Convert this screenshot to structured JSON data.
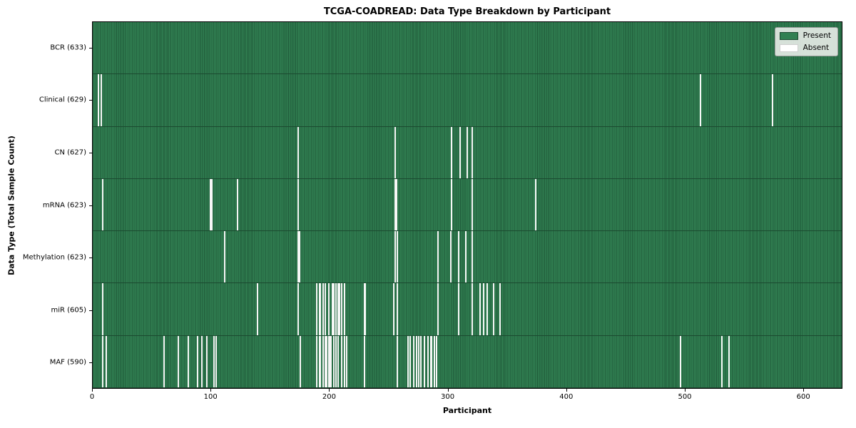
{
  "colors": {
    "present_fill": "#318052",
    "present_edge": "#1e5838",
    "absent": "#f6f7f6",
    "legend_bg": "#e9ece9"
  },
  "legend": {
    "present": "Present",
    "absent": "Absent"
  },
  "chart_data": {
    "type": "heatmap",
    "title": "TCGA-COADREAD: Data Type Breakdown by Participant",
    "xlabel": "Participant",
    "ylabel": "Data Type (Total Sample Count)",
    "x_range": [
      0,
      633
    ],
    "x_ticks": [
      0,
      100,
      200,
      300,
      400,
      500,
      600
    ],
    "legend_position": "upper right",
    "grid": false,
    "rows": [
      {
        "label": "BCR (633)",
        "name": "BCR",
        "total": 633,
        "absent": []
      },
      {
        "label": "Clinical (629)",
        "name": "Clinical",
        "total": 629,
        "absent": [
          4,
          7,
          513,
          574
        ]
      },
      {
        "label": "CN (627)",
        "name": "CN",
        "total": 627,
        "absent": [
          173,
          255,
          303,
          310,
          316,
          320
        ]
      },
      {
        "label": "mRNA (623)",
        "name": "mRNA",
        "total": 623,
        "absent": [
          8,
          99,
          100,
          122,
          173,
          255,
          256,
          303,
          320,
          374
        ]
      },
      {
        "label": "Methylation (623)",
        "name": "Methylation",
        "total": 623,
        "absent": [
          111,
          173,
          174,
          255,
          257,
          291,
          302,
          309,
          315,
          320
        ]
      },
      {
        "label": "miR (605)",
        "name": "miR",
        "total": 605,
        "absent": [
          8,
          139,
          173,
          189,
          191,
          192,
          194,
          196,
          199,
          202,
          203,
          205,
          207,
          208,
          210,
          212,
          229,
          230,
          254,
          257,
          291,
          309,
          320,
          327,
          330,
          333,
          338,
          344
        ]
      },
      {
        "label": "MAF (590)",
        "name": "MAF",
        "total": 590,
        "absent": [
          8,
          11,
          60,
          72,
          80,
          88,
          92,
          96,
          102,
          104,
          175,
          189,
          191,
          192,
          194,
          196,
          197,
          199,
          200,
          201,
          203,
          205,
          207,
          210,
          212,
          214,
          229,
          257,
          266,
          268,
          271,
          273,
          275,
          277,
          280,
          283,
          285,
          286,
          288,
          290,
          496,
          531,
          537
        ]
      }
    ]
  }
}
